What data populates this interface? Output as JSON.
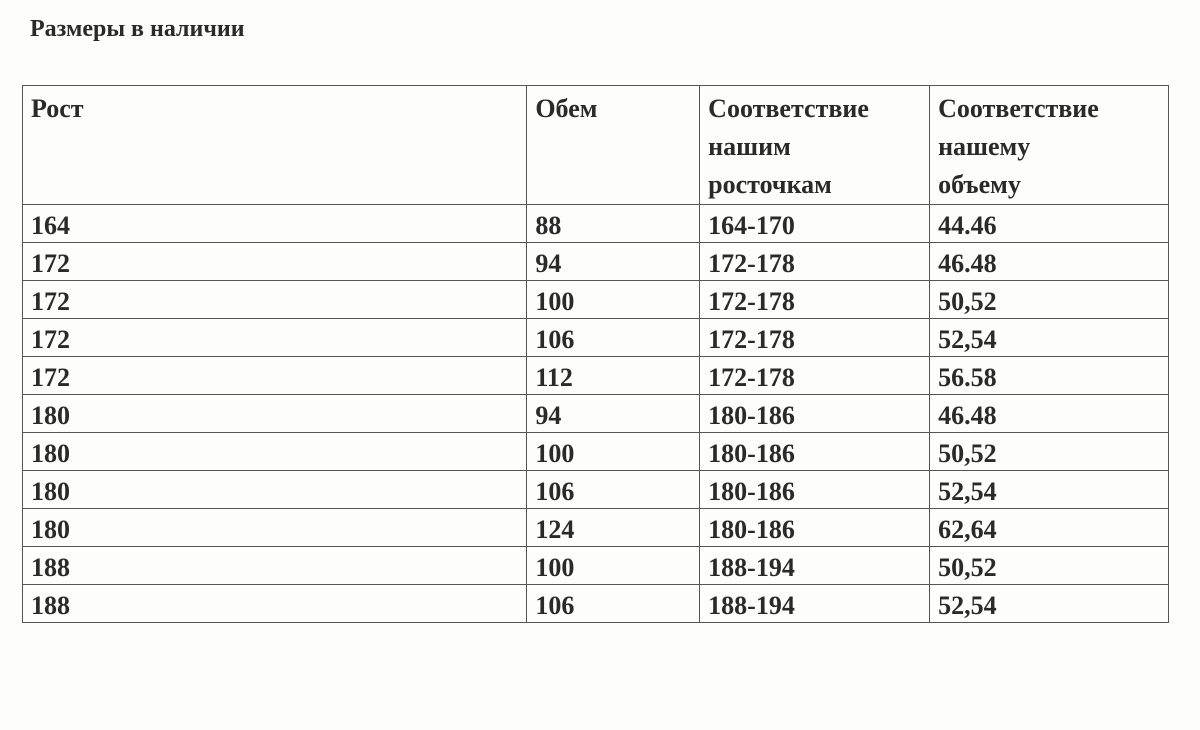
{
  "title": "Размеры в наличии",
  "table": {
    "headers": [
      "Рост",
      "Обем",
      "Соответствие нашим росточкам",
      "Соответствие нашему объему"
    ],
    "rows": [
      [
        "164",
        "88",
        "164-170",
        "44.46"
      ],
      [
        "172",
        "94",
        "172-178",
        "46.48"
      ],
      [
        "172",
        "100",
        "172-178",
        "50,52"
      ],
      [
        "172",
        "106",
        "172-178",
        "52,54"
      ],
      [
        "172",
        "112",
        "172-178",
        "56.58"
      ],
      [
        "180",
        "94",
        "180-186",
        "46.48"
      ],
      [
        "180",
        "100",
        "180-186",
        "50,52"
      ],
      [
        "180",
        "106",
        "180-186",
        "52,54"
      ],
      [
        "180",
        "124",
        "180-186",
        "62,64"
      ],
      [
        "188",
        "100",
        "188-194",
        "50,52"
      ],
      [
        "188",
        "106",
        "188-194",
        "52,54"
      ]
    ]
  }
}
